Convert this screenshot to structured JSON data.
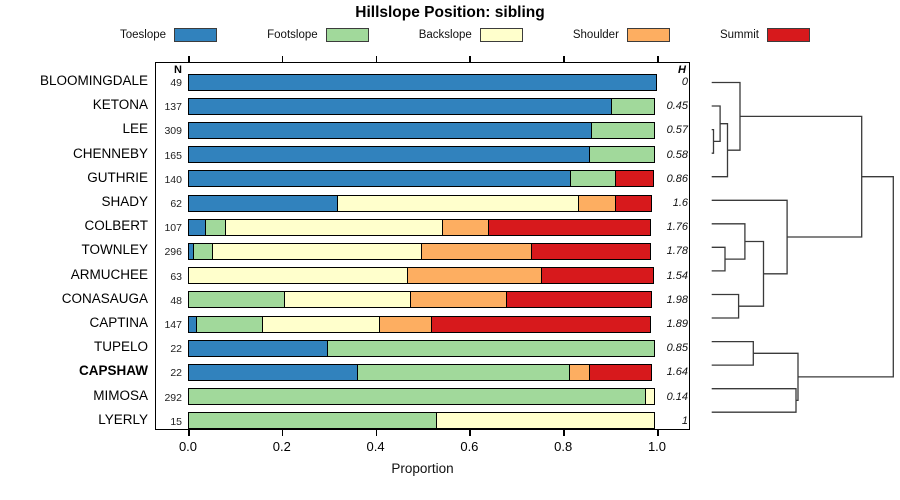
{
  "title": "Hillslope Position: sibling",
  "legend": [
    {
      "label": "Toeslope",
      "color": "#3182bd"
    },
    {
      "label": "Footslope",
      "color": "#a1d99b"
    },
    {
      "label": "Backslope",
      "color": "#ffffcc"
    },
    {
      "label": "Shoulder",
      "color": "#fdae61"
    },
    {
      "label": "Summit",
      "color": "#d7191c"
    }
  ],
  "chart_data": {
    "type": "bar",
    "subtype": "horizontal-stacked-proportion with cluster dendrogram",
    "title": "Hillslope Position: sibling",
    "xlabel": "Proportion",
    "xlim": [
      0.0,
      1.0
    ],
    "xticks": [
      0.0,
      0.2,
      0.4,
      0.6,
      0.8,
      1.0
    ],
    "n_header": "N",
    "h_header": "H",
    "categories": [
      "Toeslope",
      "Footslope",
      "Backslope",
      "Shoulder",
      "Summit"
    ],
    "colors": [
      "#3182bd",
      "#a1d99b",
      "#ffffcc",
      "#fdae61",
      "#d7191c"
    ],
    "rows": [
      {
        "name": "BLOOMINGDALE",
        "n": 49,
        "h": "0",
        "bold": false,
        "values": [
          1.0,
          0,
          0,
          0,
          0
        ]
      },
      {
        "name": "KETONA",
        "n": 137,
        "h": "0.45",
        "bold": false,
        "values": [
          0.905,
          0.095,
          0,
          0,
          0
        ]
      },
      {
        "name": "LEE",
        "n": 309,
        "h": "0.57",
        "bold": false,
        "values": [
          0.862,
          0.138,
          0,
          0,
          0
        ]
      },
      {
        "name": "CHENNEBY",
        "n": 165,
        "h": "0.58",
        "bold": false,
        "values": [
          0.859,
          0.141,
          0,
          0,
          0
        ]
      },
      {
        "name": "GUTHRIE",
        "n": 140,
        "h": "0.86",
        "bold": false,
        "values": [
          0.818,
          0.098,
          0,
          0,
          0.084
        ]
      },
      {
        "name": "SHADY",
        "n": 62,
        "h": "1.6",
        "bold": false,
        "values": [
          0.32,
          0,
          0.518,
          0.081,
          0.081
        ]
      },
      {
        "name": "COLBERT",
        "n": 107,
        "h": "1.76",
        "bold": false,
        "values": [
          0.04,
          0.046,
          0.466,
          0.1,
          0.348
        ]
      },
      {
        "name": "TOWNLEY",
        "n": 296,
        "h": "1.78",
        "bold": false,
        "values": [
          0.013,
          0.044,
          0.449,
          0.238,
          0.256
        ]
      },
      {
        "name": "ARMUCHEE",
        "n": 63,
        "h": "1.54",
        "bold": false,
        "values": [
          0,
          0,
          0.47,
          0.29,
          0.24
        ]
      },
      {
        "name": "CONASAUGA",
        "n": 48,
        "h": "1.98",
        "bold": false,
        "values": [
          0,
          0.208,
          0.272,
          0.208,
          0.312
        ]
      },
      {
        "name": "CAPTINA",
        "n": 147,
        "h": "1.89",
        "bold": false,
        "values": [
          0.021,
          0.143,
          0.252,
          0.115,
          0.469
        ]
      },
      {
        "name": "TUPELO",
        "n": 22,
        "h": "0.85",
        "bold": false,
        "values": [
          0.3,
          0.7,
          0,
          0,
          0
        ]
      },
      {
        "name": "CAPSHAW",
        "n": 22,
        "h": "1.64",
        "bold": true,
        "values": [
          0.364,
          0.455,
          0,
          0.045,
          0.136
        ]
      },
      {
        "name": "MIMOSA",
        "n": 292,
        "h": "0.14",
        "bold": false,
        "values": [
          0,
          0.977,
          0.023,
          0,
          0
        ]
      },
      {
        "name": "LYERLY",
        "n": 15,
        "h": "1",
        "bold": false,
        "values": [
          0,
          0.533,
          0.467,
          0,
          0
        ]
      }
    ],
    "dendrogram": {
      "note": "heights are relative merge positions, 0 = leaf, 1 = root; children are leaf names or #mergeIndex",
      "merges": [
        [
          "LEE",
          "CHENNEBY",
          0.01
        ],
        [
          "KETONA",
          "#0",
          0.046
        ],
        [
          "#1",
          "GUTHRIE",
          0.087
        ],
        [
          "BLOOMINGDALE",
          "#2",
          0.156
        ],
        [
          "TOWNLEY",
          "ARMUCHEE",
          0.073
        ],
        [
          "COLBERT",
          "#4",
          0.183
        ],
        [
          "CONASAUGA",
          "CAPTINA",
          0.148
        ],
        [
          "#5",
          "#6",
          0.285
        ],
        [
          "SHADY",
          "#7",
          0.415
        ],
        [
          "#3",
          "#8",
          0.826
        ],
        [
          "TUPELO",
          "CAPSHAW",
          0.229
        ],
        [
          "MIMOSA",
          "LYERLY",
          0.464
        ],
        [
          "#10",
          "#11",
          0.475
        ],
        [
          "#9",
          "#12",
          1.0
        ]
      ]
    }
  }
}
